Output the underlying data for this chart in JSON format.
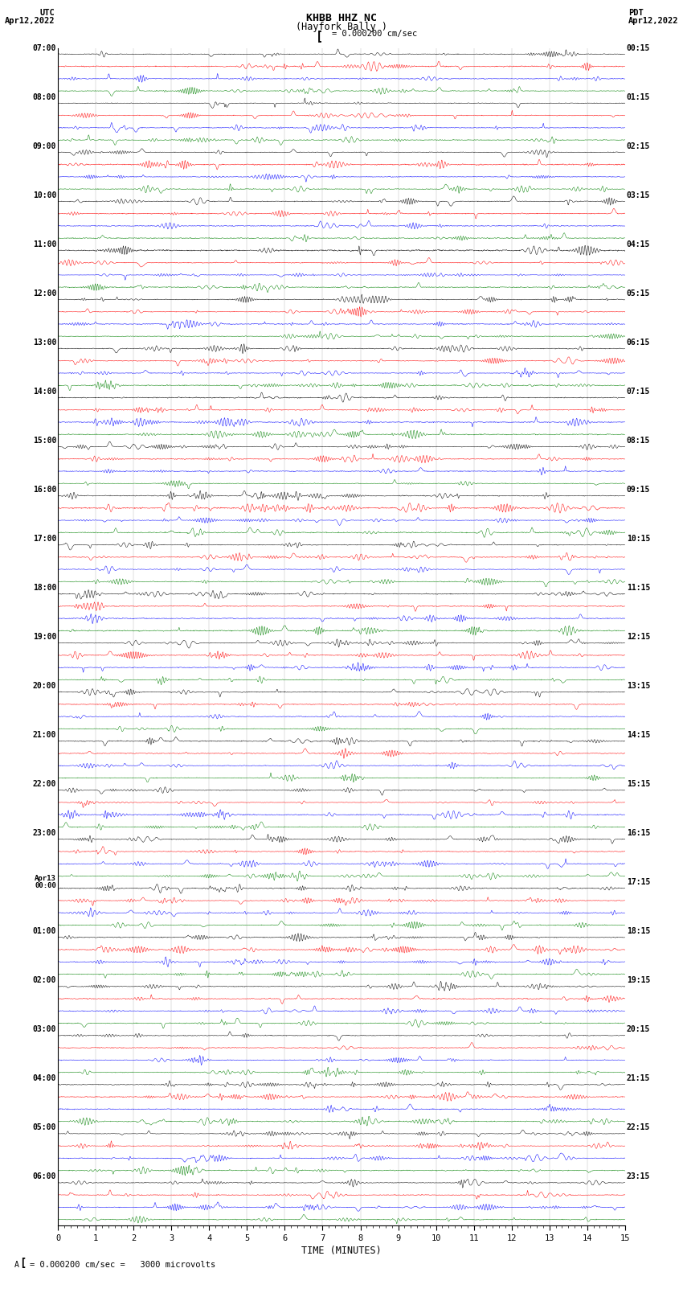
{
  "title_line1": "KHBB HHZ NC",
  "title_line2": "(Hayfork Bally )",
  "scale_label": "= 0.000200 cm/sec",
  "left_label_line1": "UTC",
  "left_label_line2": "Apr12,2022",
  "right_label_line1": "PDT",
  "right_label_line2": "Apr12,2022",
  "xlabel": "TIME (MINUTES)",
  "bottom_note": "= 0.000200 cm/sec =   3000 microvolts",
  "colors": [
    "black",
    "red",
    "blue",
    "green"
  ],
  "bg_color": "white",
  "fig_width": 8.5,
  "fig_height": 16.13,
  "dpi": 100,
  "xlim": [
    0,
    15
  ],
  "xticks": [
    0,
    1,
    2,
    3,
    4,
    5,
    6,
    7,
    8,
    9,
    10,
    11,
    12,
    13,
    14,
    15
  ],
  "num_groups": 24,
  "traces_per_group": 4,
  "left_time_labels": [
    "07:00",
    "08:00",
    "09:00",
    "10:00",
    "11:00",
    "12:00",
    "13:00",
    "14:00",
    "15:00",
    "16:00",
    "17:00",
    "18:00",
    "19:00",
    "20:00",
    "21:00",
    "22:00",
    "23:00",
    "Apr13\n00:00",
    "01:00",
    "02:00",
    "03:00",
    "04:00",
    "05:00",
    "06:00"
  ],
  "right_time_labels": [
    "00:15",
    "01:15",
    "02:15",
    "03:15",
    "04:15",
    "05:15",
    "06:15",
    "07:15",
    "08:15",
    "09:15",
    "10:15",
    "11:15",
    "12:15",
    "13:15",
    "14:15",
    "15:15",
    "16:15",
    "17:15",
    "18:15",
    "19:15",
    "20:15",
    "21:15",
    "22:15",
    "23:15"
  ]
}
